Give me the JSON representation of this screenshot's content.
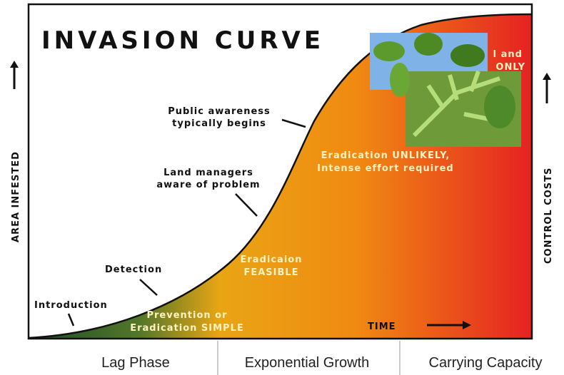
{
  "title": "INVASION CURVE",
  "axes": {
    "y_left": "AREA INFESTED",
    "y_right": "CONTROL COSTS",
    "x": "TIME"
  },
  "events": [
    {
      "lines": [
        "Public awareness",
        "typically begins"
      ]
    },
    {
      "lines": [
        "Land managers",
        "aware of problem"
      ]
    },
    {
      "lines": [
        "Detection"
      ]
    },
    {
      "lines": [
        "Introduction"
      ]
    }
  ],
  "zones": [
    {
      "lines": [
        "Prevention or",
        "Eradication SIMPLE"
      ]
    },
    {
      "lines": [
        "Eradicaion",
        "FEASIBLE"
      ]
    },
    {
      "lines": [
        "Eradication UNLIKELY,",
        "Intense effort required"
      ]
    },
    {
      "lines": [
        "l and",
        "ONLY"
      ]
    }
  ],
  "phases": [
    "Lag Phase",
    "Exponential Growth",
    "Carrying Capacity"
  ]
}
